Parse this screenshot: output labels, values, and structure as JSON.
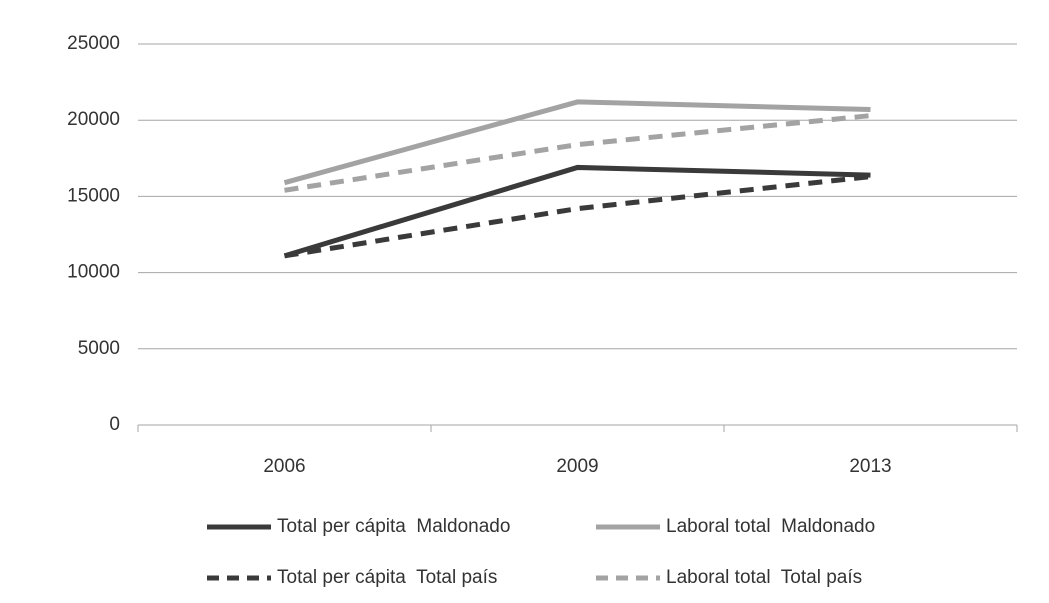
{
  "chart_data": {
    "type": "line",
    "categories": [
      "2006",
      "2009",
      "2013"
    ],
    "series": [
      {
        "name": "Total per cápita  Maldonado",
        "color": "#3a3a3a",
        "line_style": "solid",
        "values": [
          11100,
          16900,
          16400
        ]
      },
      {
        "name": "Laboral total  Maldonado",
        "color": "#a3a3a3",
        "line_style": "solid",
        "values": [
          15900,
          21200,
          20700
        ]
      },
      {
        "name": "Total per cápita  Total país",
        "color": "#3a3a3a",
        "line_style": "dashed",
        "values": [
          11100,
          14200,
          16300
        ]
      },
      {
        "name": "Laboral total  Total país",
        "color": "#a3a3a3",
        "line_style": "dashed",
        "values": [
          15400,
          18400,
          20300
        ]
      }
    ],
    "ylim": [
      0,
      25000
    ],
    "yticks": [
      0,
      5000,
      10000,
      15000,
      20000,
      25000
    ],
    "grid": true,
    "legend": "bottom"
  }
}
